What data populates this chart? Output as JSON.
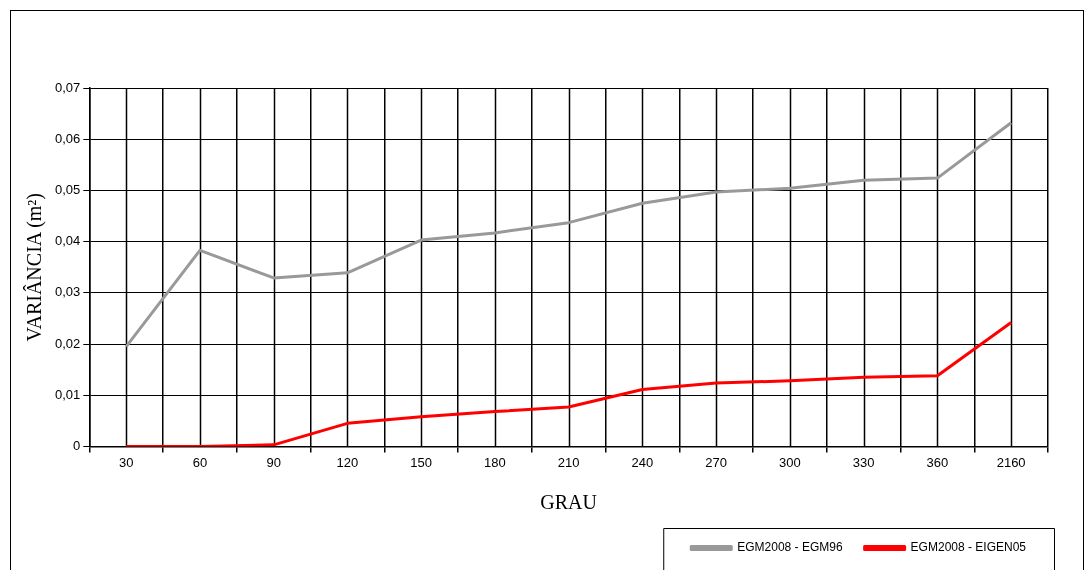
{
  "chart_data": {
    "type": "line",
    "xlabel": "GRAU",
    "ylabel": "VARIÂNCIA (m²)",
    "categories": [
      "30",
      "60",
      "90",
      "120",
      "150",
      "180",
      "210",
      "240",
      "270",
      "300",
      "330",
      "360",
      "2160"
    ],
    "series": [
      {
        "name": "EGM2008 - EGM96",
        "color": "#999999",
        "values": [
          0.0195,
          0.0383,
          0.0329,
          0.0339,
          0.0403,
          0.0417,
          0.0437,
          0.0475,
          0.0497,
          0.0504,
          0.052,
          0.0524,
          0.0632
        ]
      },
      {
        "name": "EGM2008 - EIGEN05",
        "color": "#ff0000",
        "values": [
          0,
          0,
          0.0003,
          0.0045,
          0.0058,
          0.0068,
          0.0077,
          0.0111,
          0.0124,
          0.0128,
          0.0135,
          0.0138,
          0.0242
        ]
      }
    ],
    "ylim": [
      0,
      0.07
    ],
    "yticks": [
      0,
      {
        "value": 0.01,
        "label": "0,01"
      },
      {
        "value": 0.02,
        "label": "0,02"
      },
      {
        "value": 0.03,
        "label": "0,03"
      },
      {
        "value": 0.04,
        "label": "0,04"
      },
      {
        "value": 0.05,
        "label": "0,05"
      },
      {
        "value": 0.06,
        "label": "0,06"
      },
      {
        "value": 0.07,
        "label": "0,07"
      }
    ],
    "grid": true,
    "legend": "bottom right",
    "marker": "none",
    "line_style": "solid"
  }
}
